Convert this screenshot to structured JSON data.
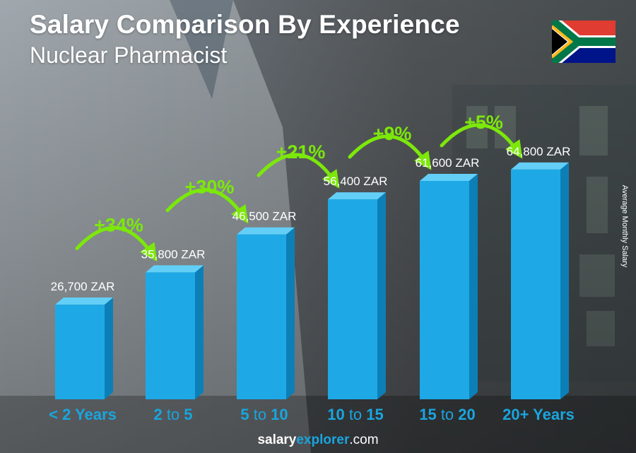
{
  "title": "Salary Comparison By Experience",
  "subtitle": "Nuclear Pharmacist",
  "side_label": "Average Monthly Salary",
  "brand": {
    "part1": "salary",
    "part2": "explorer",
    "part3": ".com"
  },
  "flag_icon": "south-africa-flag-icon",
  "colors": {
    "bar_front": "#1ea9e6",
    "bar_side": "#0c7fb7",
    "bar_top": "#63cff7",
    "increase": "#7ce80a",
    "label": "#ffffff",
    "axis_label": "#1aa5df"
  },
  "chart_data": {
    "type": "bar",
    "title": "Salary Comparison By Experience",
    "subtitle": "Nuclear Pharmacist",
    "ylabel": "Average Monthly Salary",
    "unit": "ZAR",
    "categories": [
      {
        "parts": [
          {
            "text": "< 2 Years",
            "bold": true
          }
        ]
      },
      {
        "parts": [
          {
            "text": "2",
            "bold": true
          },
          {
            "text": " to ",
            "bold": false
          },
          {
            "text": "5",
            "bold": true
          }
        ]
      },
      {
        "parts": [
          {
            "text": "5",
            "bold": true
          },
          {
            "text": " to ",
            "bold": false
          },
          {
            "text": "10",
            "bold": true
          }
        ]
      },
      {
        "parts": [
          {
            "text": "10",
            "bold": true
          },
          {
            "text": " to ",
            "bold": false
          },
          {
            "text": "15",
            "bold": true
          }
        ]
      },
      {
        "parts": [
          {
            "text": "15",
            "bold": true
          },
          {
            "text": " to ",
            "bold": false
          },
          {
            "text": "20",
            "bold": true
          }
        ]
      },
      {
        "parts": [
          {
            "text": "20+ Years",
            "bold": true
          }
        ]
      }
    ],
    "values": [
      26700,
      35800,
      46500,
      56400,
      61600,
      64800
    ],
    "value_labels": [
      "26,700 ZAR",
      "35,800 ZAR",
      "46,500 ZAR",
      "56,400 ZAR",
      "61,600 ZAR",
      "64,800 ZAR"
    ],
    "increases": [
      "+34%",
      "+30%",
      "+21%",
      "+9%",
      "+5%"
    ],
    "ylim": [
      0,
      70000
    ],
    "grid": false,
    "legend": "none"
  }
}
